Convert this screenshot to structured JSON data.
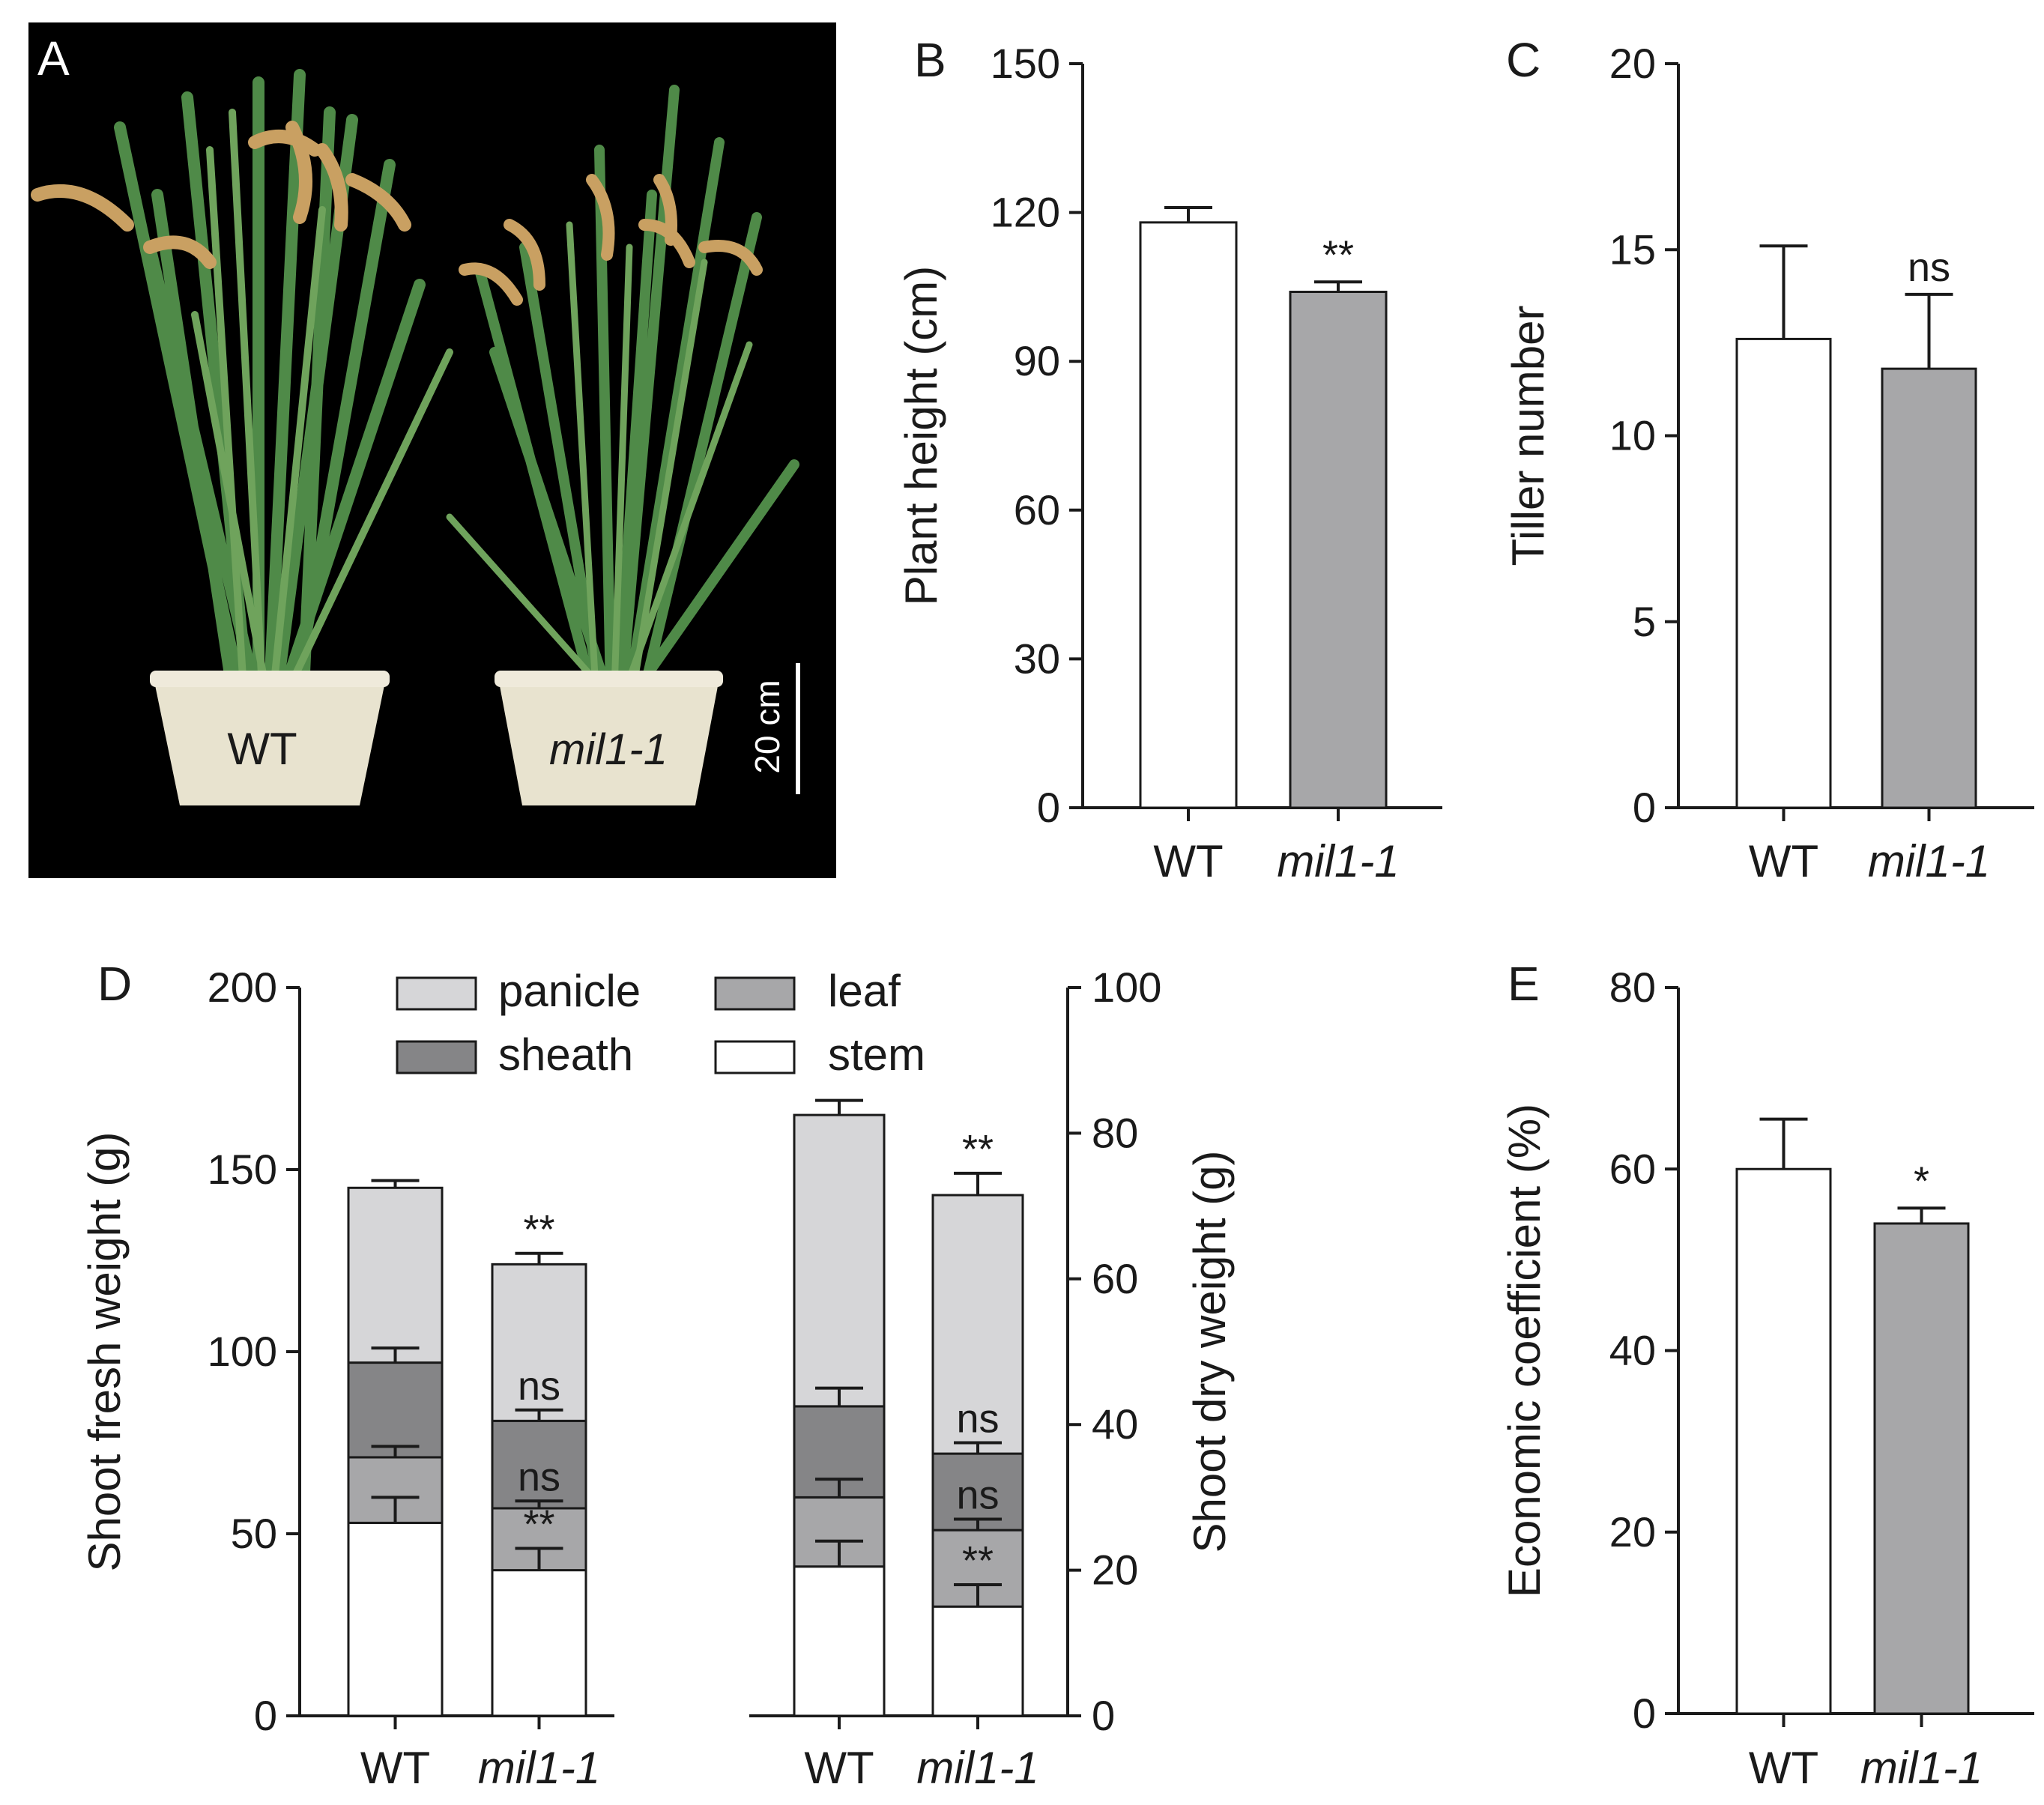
{
  "figure": {
    "panel_letters": {
      "A": "A",
      "B": "B",
      "C": "C",
      "D": "D",
      "E": "E"
    },
    "photo": {
      "pot_labels": [
        "WT",
        "mil1-1"
      ],
      "scale_bar_label": "20 cm"
    }
  },
  "colors": {
    "wt": "#ffffff",
    "mutant": "#a7a7a9",
    "panicle": "#d6d6d8",
    "sheath": "#858587",
    "leaf": "#a7a7a9",
    "stem": "#ffffff",
    "photo_bg": "#000000",
    "pot": "#e8e3cf"
  },
  "chart_data": [
    {
      "id": "B",
      "type": "bar",
      "categories": [
        "WT",
        "mil1-1"
      ],
      "values": [
        118,
        104
      ],
      "errors": [
        3,
        2
      ],
      "significance": [
        "",
        "**"
      ],
      "ylabel": "Plant height (cm)",
      "ylim": [
        0,
        150
      ],
      "yticks": [
        0,
        30,
        60,
        90,
        120,
        150
      ]
    },
    {
      "id": "C",
      "type": "bar",
      "categories": [
        "WT",
        "mil1-1"
      ],
      "values": [
        12.6,
        11.8
      ],
      "errors": [
        2.5,
        2.0
      ],
      "significance": [
        "",
        "ns"
      ],
      "ylabel": "Tiller number",
      "ylim": [
        0,
        20
      ],
      "yticks": [
        0,
        5,
        10,
        15,
        20
      ]
    },
    {
      "id": "D-fresh",
      "type": "bar",
      "stacked": true,
      "categories": [
        "WT",
        "mil1-1"
      ],
      "ylabel": "Shoot fresh weight (g)",
      "ylim": [
        0,
        200
      ],
      "yticks": [
        0,
        50,
        100,
        150,
        200
      ],
      "legend": [
        "panicle",
        "leaf",
        "sheath",
        "stem"
      ],
      "series": [
        {
          "name": "stem",
          "values": [
            53,
            40
          ],
          "errors": [
            7,
            6
          ],
          "significance": [
            "",
            "**"
          ]
        },
        {
          "name": "leaf",
          "values": [
            18,
            17
          ],
          "errors": [
            3,
            2
          ],
          "significance": [
            "",
            "ns"
          ]
        },
        {
          "name": "sheath",
          "values": [
            26,
            24
          ],
          "errors": [
            4,
            3
          ],
          "significance": [
            "",
            "ns"
          ]
        },
        {
          "name": "panicle",
          "values": [
            48,
            43
          ],
          "errors": [
            2,
            3
          ],
          "significance": [
            "",
            "**"
          ]
        }
      ]
    },
    {
      "id": "D-dry",
      "type": "bar",
      "stacked": true,
      "categories": [
        "WT",
        "mil1-1"
      ],
      "ylabel": "Shoot dry weight (g)",
      "ylim": [
        0,
        100
      ],
      "yticks": [
        0,
        20,
        40,
        60,
        80,
        100
      ],
      "series": [
        {
          "name": "stem",
          "values": [
            20.5,
            15
          ],
          "errors": [
            3.5,
            3
          ],
          "significance": [
            "",
            "**"
          ]
        },
        {
          "name": "leaf",
          "values": [
            9.5,
            10.5
          ],
          "errors": [
            2.5,
            1.5
          ],
          "significance": [
            "",
            "ns"
          ]
        },
        {
          "name": "sheath",
          "values": [
            12.5,
            10.5
          ],
          "errors": [
            2.5,
            1.5
          ],
          "significance": [
            "",
            "ns"
          ]
        },
        {
          "name": "panicle",
          "values": [
            40,
            35.5
          ],
          "errors": [
            2,
            3
          ],
          "significance": [
            "",
            "**"
          ]
        }
      ]
    },
    {
      "id": "E",
      "type": "bar",
      "categories": [
        "WT",
        "mil1-1"
      ],
      "values": [
        60,
        54
      ],
      "errors": [
        5.5,
        1.7
      ],
      "significance": [
        "",
        "*"
      ],
      "ylabel": "Economic coefficient (%)",
      "ylim": [
        0,
        80
      ],
      "yticks": [
        0,
        20,
        40,
        60,
        80
      ]
    }
  ]
}
